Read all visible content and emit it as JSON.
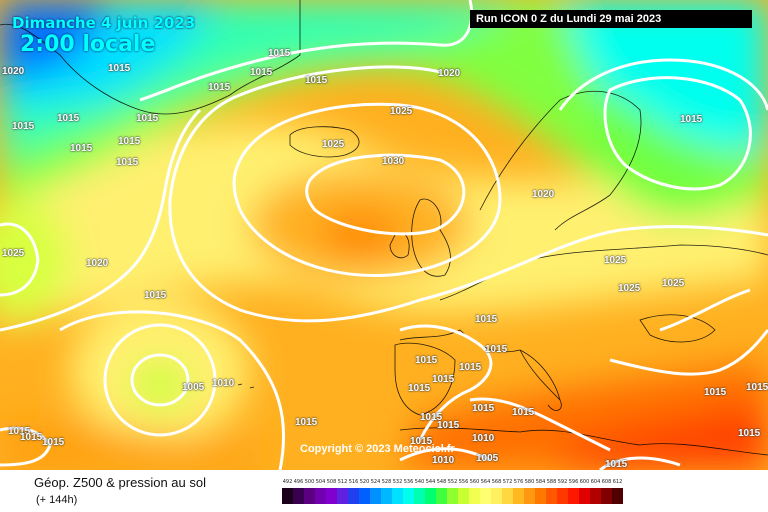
{
  "header": {
    "date": "Dimanche 4 juin 2023",
    "time": "2:00 locale",
    "run": "Run ICON 0 Z du Lundi 29 mai 2023"
  },
  "copyright": "Copyright © 2023 Meteociel.fr",
  "footer": {
    "title": "Géop. Z500 & pression au sol",
    "subtitle": "(+ 144h)"
  },
  "isobar_labels": [
    "1020",
    "1015",
    "1015",
    "1015",
    "1015",
    "1015",
    "1015",
    "1015",
    "1015",
    "1015",
    "1015",
    "1015",
    "1020",
    "1025",
    "1025",
    "1030",
    "1020",
    "1025",
    "1025",
    "1025",
    "1015",
    "1025",
    "1020",
    "1015",
    "1015",
    "1015",
    "1015",
    "1015",
    "1015",
    "1015",
    "1005",
    "1010",
    "1015",
    "1015",
    "1015",
    "1015",
    "1015",
    "1015",
    "1010",
    "1010",
    "1005",
    "1015",
    "1015",
    "1015",
    "1015",
    "1015",
    "1015",
    "1015"
  ],
  "legend": {
    "values": [
      "492",
      "496",
      "500",
      "504",
      "508",
      "512",
      "516",
      "520",
      "524",
      "528",
      "532",
      "536",
      "540",
      "544",
      "548",
      "552",
      "556",
      "560",
      "564",
      "568",
      "572",
      "576",
      "580",
      "584",
      "588",
      "592",
      "596",
      "600",
      "604",
      "608",
      "612"
    ],
    "colors": [
      "#1a001a",
      "#3a0050",
      "#5a0080",
      "#7000b0",
      "#8000d0",
      "#6020e0",
      "#2040f0",
      "#0060ff",
      "#0090ff",
      "#00b8ff",
      "#00e0ff",
      "#00ffee",
      "#00ffb0",
      "#00ff70",
      "#40ff40",
      "#90ff30",
      "#c8ff30",
      "#f0ff50",
      "#ffff70",
      "#fff060",
      "#ffd840",
      "#ffb820",
      "#ff9810",
      "#ff7800",
      "#ff5800",
      "#ff3800",
      "#ff1800",
      "#e00000",
      "#b00000",
      "#800000",
      "#500000"
    ]
  }
}
